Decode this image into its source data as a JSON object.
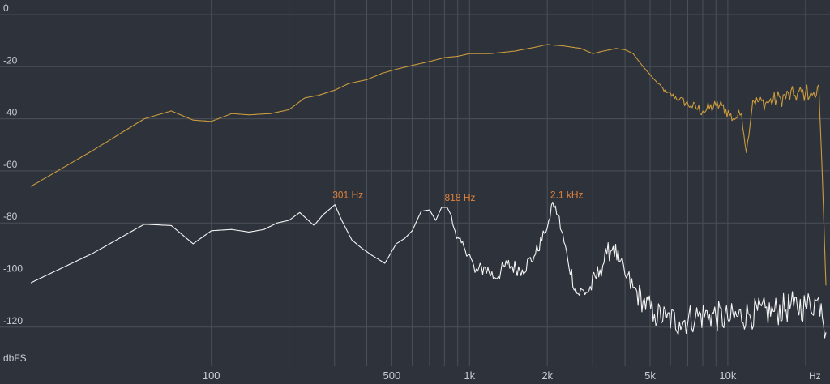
{
  "chart_data": {
    "type": "line",
    "title": "",
    "xlabel": "Hz",
    "ylabel": "dbFS",
    "x_scale": "log",
    "xlim": [
      20,
      24000
    ],
    "ylim": [
      -135,
      0
    ],
    "grid": true,
    "y_ticks": [
      0,
      -20,
      -40,
      -60,
      -80,
      -100,
      -120
    ],
    "x_tick_labels": [
      {
        "value": 100,
        "label": "100"
      },
      {
        "value": 500,
        "label": "500"
      },
      {
        "value": 1000,
        "label": "1k"
      },
      {
        "value": 2000,
        "label": "2k"
      },
      {
        "value": 5000,
        "label": "5k"
      },
      {
        "value": 10000,
        "label": "10k"
      }
    ],
    "x_gridlines": [
      100,
      200,
      300,
      400,
      500,
      600,
      700,
      800,
      900,
      1000,
      2000,
      3000,
      4000,
      5000,
      6000,
      7000,
      8000,
      9000,
      10000,
      20000
    ],
    "annotations": [
      {
        "text": "301 Hz",
        "x": 301,
        "y": -73
      },
      {
        "text": "818 Hz",
        "x": 818,
        "y": -74
      },
      {
        "text": "2.1 kHz",
        "x": 2100,
        "y": -73
      }
    ],
    "series": [
      {
        "color": "#c99a3e",
        "x": [
          20,
          35,
          55,
          70,
          85,
          100,
          120,
          140,
          170,
          200,
          230,
          260,
          301,
          340,
          400,
          460,
          520,
          600,
          700,
          800,
          900,
          1000,
          1200,
          1500,
          1800,
          2000,
          2300,
          2700,
          3000,
          3300,
          3700,
          4000,
          4300,
          4700,
          5200,
          5800,
          6500,
          7200,
          8000,
          9000,
          9500,
          10500,
          11300,
          11800,
          12500,
          14000,
          16000,
          18000,
          20000,
          21000,
          21800,
          22500,
          23200,
          24000
        ],
        "y": [
          -66,
          -52,
          -40,
          -37,
          -40.5,
          -41,
          -38,
          -38.5,
          -38,
          -36.5,
          -32,
          -31,
          -29,
          -26.5,
          -25,
          -22.5,
          -21,
          -19.5,
          -18,
          -16.5,
          -16,
          -15,
          -15,
          -14,
          -12.5,
          -11.5,
          -12,
          -13,
          -15,
          -14,
          -13,
          -13.5,
          -15,
          -20,
          -25,
          -30,
          -32.5,
          -35,
          -37,
          -35,
          -35,
          -40,
          -38,
          -53,
          -33,
          -34,
          -32,
          -31,
          -30,
          -30,
          -32,
          -27,
          -60,
          -104
        ],
        "jitter": [
          0,
          0,
          0,
          0,
          0,
          0,
          0,
          0,
          0,
          0,
          0,
          0,
          0,
          0,
          0,
          0,
          0,
          0,
          0,
          0,
          0,
          0,
          0,
          0,
          0,
          0,
          0,
          0,
          0,
          0,
          0,
          0,
          0,
          0,
          0,
          1,
          1.5,
          2,
          2.5,
          2.5,
          2.5,
          2.5,
          2,
          1,
          2,
          3,
          3.5,
          3.5,
          3.5,
          3,
          2,
          1,
          0,
          0
        ]
      },
      {
        "color": "#f4f4f4",
        "x": [
          20,
          35,
          55,
          70,
          85,
          100,
          120,
          140,
          160,
          180,
          200,
          220,
          250,
          270,
          301,
          320,
          350,
          380,
          420,
          470,
          520,
          560,
          600,
          650,
          700,
          740,
          780,
          818,
          850,
          890,
          950,
          1000,
          1050,
          1150,
          1250,
          1400,
          1600,
          1800,
          1950,
          2050,
          2100,
          2200,
          2400,
          2600,
          2900,
          3200,
          3400,
          3600,
          3800,
          4000,
          4300,
          4700,
          5200,
          5800,
          6500,
          7500,
          8500,
          10000,
          12000,
          15000,
          18000,
          20000,
          22000,
          23000,
          24000
        ],
        "y": [
          -103,
          -91.5,
          -80.5,
          -81,
          -88,
          -83,
          -82.5,
          -83.5,
          -82.5,
          -80,
          -79,
          -76,
          -81,
          -77,
          -73,
          -79,
          -86.5,
          -89.5,
          -92.5,
          -95.5,
          -88,
          -86,
          -83,
          -75.5,
          -75,
          -79,
          -74,
          -74,
          -77,
          -86,
          -89,
          -92,
          -99,
          -97,
          -101,
          -96,
          -98,
          -92,
          -84,
          -78,
          -72,
          -77,
          -94,
          -107,
          -106,
          -98,
          -92,
          -89,
          -95,
          -100,
          -105,
          -110,
          -115,
          -116.5,
          -118,
          -116,
          -115,
          -117,
          -115,
          -114,
          -112,
          -112,
          -110,
          -111,
          -122
        ],
        "jitter": [
          0,
          0,
          0,
          0,
          0,
          0,
          0,
          0,
          0,
          0,
          0,
          0,
          0,
          0,
          0,
          0,
          0,
          0,
          0,
          0,
          0,
          0,
          0,
          0,
          0,
          0,
          0,
          0,
          1,
          1.5,
          2,
          2.5,
          3,
          3,
          3,
          3,
          3,
          3,
          2,
          2,
          2,
          2.5,
          3,
          3.5,
          4,
          4,
          4,
          4,
          4,
          4.5,
          5,
          5,
          5.5,
          5.5,
          6,
          6,
          6,
          6,
          6,
          6,
          6,
          6,
          6,
          6,
          6
        ]
      }
    ]
  }
}
